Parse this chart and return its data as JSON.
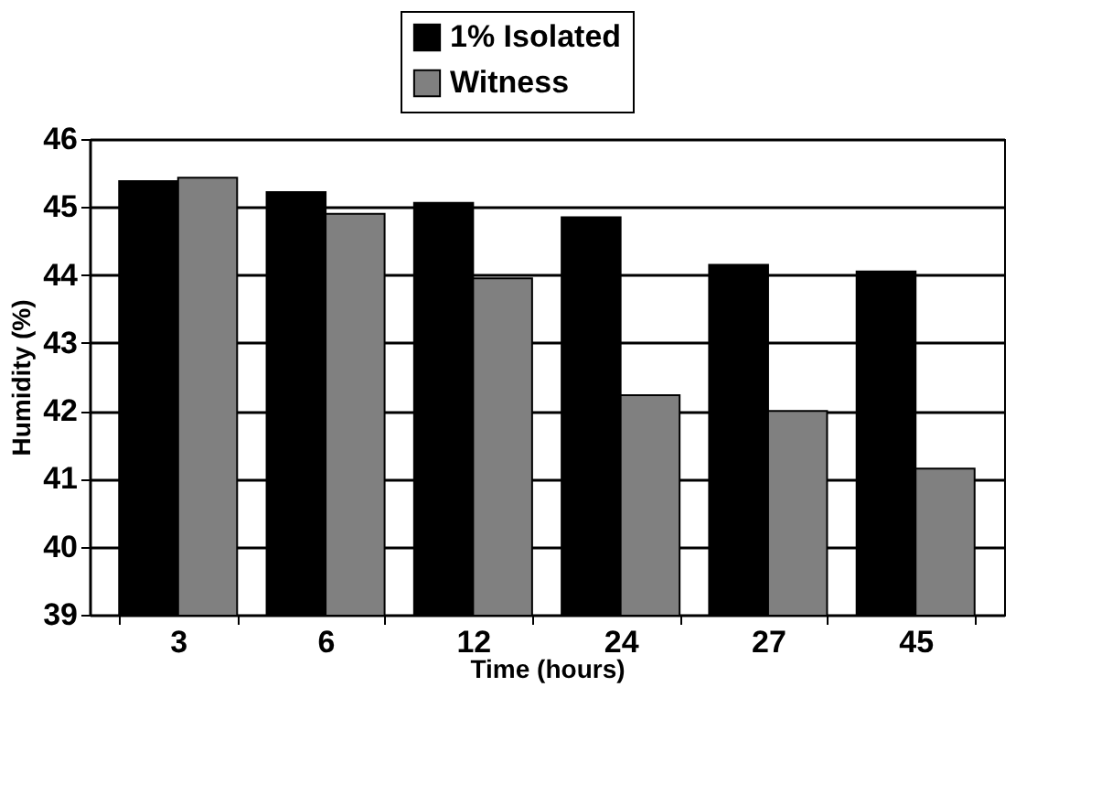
{
  "chart_data": {
    "type": "bar",
    "xlabel": "Time (hours)",
    "ylabel": "Humidity (%)",
    "categories": [
      "3",
      "6",
      "12",
      "24",
      "27",
      "45"
    ],
    "series": [
      {
        "name": "1% Isolated",
        "color": "#000000",
        "values": [
          45.38,
          45.22,
          45.06,
          44.85,
          44.15,
          44.05
        ]
      },
      {
        "name": "Witness",
        "color": "#808080",
        "values": [
          45.43,
          44.9,
          43.95,
          42.23,
          42.0,
          41.15
        ]
      }
    ],
    "ylim": [
      39,
      46
    ],
    "yticks": [
      39,
      40,
      41,
      42,
      43,
      44,
      45,
      46
    ],
    "grid": "y",
    "legend": "top"
  }
}
